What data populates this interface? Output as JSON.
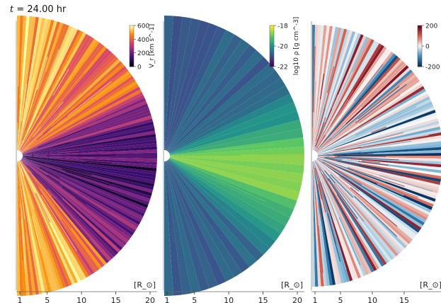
{
  "figure": {
    "time_label_var": "t",
    "time_label_value": "= 24.00 hr"
  },
  "chart_data": [
    {
      "type": "heatmap",
      "panel": "left",
      "quantity": "radial velocity V_r",
      "colormap": "inferno",
      "colorbar": {
        "label": "V_r [km s^-1]",
        "ticks": [
          0,
          200,
          400,
          600
        ],
        "range": [
          0,
          600
        ]
      },
      "xaxis": {
        "label": "[R_⊙]",
        "ticks": [
          1,
          5,
          10,
          15,
          20
        ],
        "range": [
          1,
          20
        ]
      },
      "colors": [
        "#050414",
        "#3b0f6f",
        "#8c2981",
        "#dd4a68",
        "#f98e09",
        "#fcffa4"
      ]
    },
    {
      "type": "heatmap",
      "panel": "middle",
      "quantity": "density log10 rho",
      "colormap": "viridis",
      "colorbar": {
        "label": "log10 ρ [g cm^-3]",
        "ticks": [
          -18,
          -20,
          -22
        ],
        "range": [
          -22,
          -18
        ]
      },
      "xaxis": {
        "label": "[R_⊙]",
        "ticks": [
          1,
          5,
          10,
          15,
          20
        ],
        "range": [
          1,
          20
        ]
      },
      "colors": [
        "#440154",
        "#3b528b",
        "#21918c",
        "#5ec962",
        "#fde725"
      ]
    },
    {
      "type": "heatmap",
      "panel": "right",
      "quantity": "diverging field",
      "colormap": "RdBu_r",
      "colorbar": {
        "label": "",
        "ticks": [
          200,
          0,
          -200
        ],
        "range": [
          -200,
          200
        ]
      },
      "xaxis": {
        "label": "[R_⊙]",
        "ticks": [
          1,
          5,
          10,
          15
        ],
        "range": [
          1,
          17
        ]
      },
      "colors": [
        "#053061",
        "#4393c3",
        "#f7f7f7",
        "#d6604d",
        "#67001f"
      ]
    }
  ]
}
